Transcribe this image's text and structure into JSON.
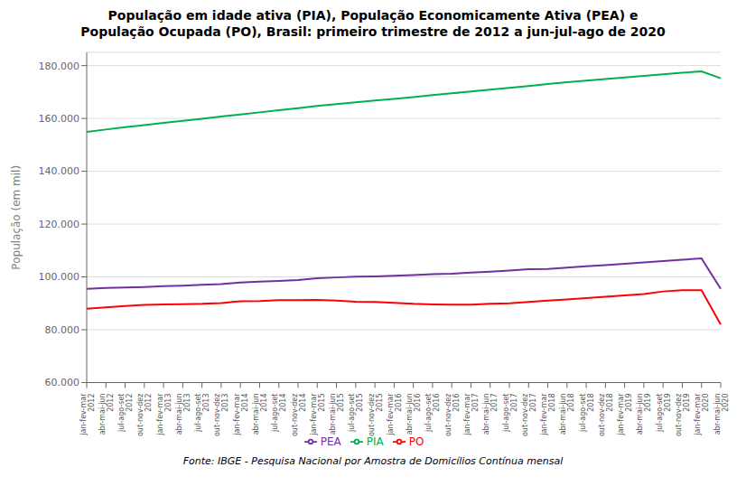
{
  "chart_data": {
    "type": "line",
    "title": "População em idade ativa (PIA), População Economicamente Ativa (PEA) e\nPopulação Ocupada (PO), Brasil: primeiro trimestre de 2012 a jun-jul-ago de 2020",
    "footnote": "Fonte: IBGE - Pesquisa Nacional por Amostra de Domicílios Contínua mensal",
    "y_label": "População (em mil)",
    "categories": [
      "jan-fev-mar\n2012",
      "abr-mai-jun\n2012",
      "jul-ago-set\n2012",
      "out-nov-dez\n2012",
      "jan-fev-mar\n2013",
      "abr-mai-jun\n2013",
      "jul-ago-set\n2013",
      "out-nov-dez\n2013",
      "jan-fev-mar\n2014",
      "abr-mai-jun\n2014",
      "jul-ago-set\n2014",
      "out-nov-dez\n2014",
      "jan-fev-mar\n2015",
      "abr-mai-jun\n2015",
      "jul-ago-set\n2015",
      "out-nov-dez\n2015",
      "jan-fev-mar\n2016",
      "abr-mai-jun\n2016",
      "jul-ago-set\n2016",
      "out-nov-dez\n2016",
      "jan-fev-mar\n2017",
      "abr-mai-jun\n2017",
      "jul-ago-set\n2017",
      "out-nov-dez\n2017",
      "jan-fev-mar\n2018",
      "abr-mai-jun\n2018",
      "jul-ago-set\n2018",
      "out-nov-dez\n2018",
      "jan-fev-mar\n2019",
      "abr-mai-jun\n2019",
      "jul-ago-set\n2019",
      "out-nov-dez\n2019",
      "jan-fev-mar\n2020",
      "abr-mai-jun\n2020"
    ],
    "series": [
      {
        "name": "PIA",
        "color": "#00B050",
        "values": [
          154900,
          155800,
          156700,
          157500,
          158300,
          159100,
          159900,
          160700,
          161500,
          162300,
          163100,
          163900,
          164700,
          165400,
          166100,
          166800,
          167400,
          168100,
          168800,
          169500,
          170200,
          170900,
          171600,
          172300,
          173000,
          173700,
          174300,
          174900,
          175500,
          176100,
          176700,
          177300,
          177800,
          175200
        ]
      },
      {
        "name": "PEA",
        "color": "#7030A0",
        "values": [
          95500,
          95800,
          96000,
          96200,
          96500,
          96700,
          97000,
          97300,
          97900,
          98200,
          98500,
          98800,
          99500,
          99800,
          100100,
          100200,
          100400,
          100700,
          101000,
          101200,
          101600,
          102000,
          102400,
          102900,
          103000,
          103500,
          104000,
          104500,
          105000,
          105500,
          106000,
          106500,
          107000,
          95500
        ]
      },
      {
        "name": "PO",
        "color": "#FF0000",
        "values": [
          88000,
          88500,
          89000,
          89400,
          89600,
          89700,
          89800,
          90100,
          90800,
          90900,
          91200,
          91200,
          91300,
          91000,
          90600,
          90500,
          90200,
          89800,
          89600,
          89500,
          89500,
          89800,
          90000,
          90500,
          91000,
          91500,
          92000,
          92500,
          93000,
          93500,
          94500,
          95000,
          95000,
          82000
        ]
      }
    ],
    "ylim": [
      60000,
      185000
    ],
    "yticks": [
      {
        "value": 60000,
        "label": "60.000"
      },
      {
        "value": 80000,
        "label": "80.000"
      },
      {
        "value": 100000,
        "label": "100.000"
      },
      {
        "value": 120000,
        "label": "120.000"
      },
      {
        "value": 140000,
        "label": "140.000"
      },
      {
        "value": 160000,
        "label": "160.000"
      },
      {
        "value": 180000,
        "label": "180.000"
      }
    ],
    "grid": true,
    "legend": "bottom"
  }
}
